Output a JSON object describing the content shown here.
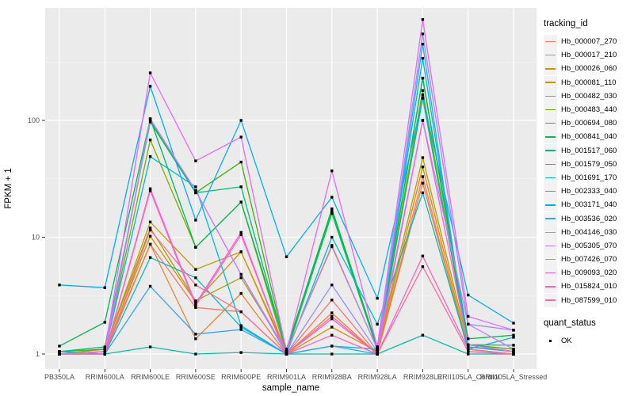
{
  "figure": {
    "background": "#FFFFFF",
    "panel_background": "#EBEBEB",
    "grid_major_color": "#FFFFFF",
    "grid_minor_color": "#F7F7F7",
    "tick_color": "#333333",
    "tick_label_color": "#4D4D4D",
    "axis_title_color": "#000000",
    "marker_color": "#000000",
    "legend_key_background": "#F2F2F2"
  },
  "chart_data": {
    "type": "line",
    "title": "",
    "xlabel": "sample_name",
    "ylabel": "FPKM + 1",
    "y_scale": "log10",
    "ylim": [
      0.74,
      920
    ],
    "grid": true,
    "legend_position": "right",
    "marker": "square",
    "yticks": [
      {
        "value": 1,
        "label": "1"
      },
      {
        "value": 10,
        "label": "10"
      },
      {
        "value": 100,
        "label": "100"
      }
    ],
    "minor_yticks": [
      3.162,
      31.62,
      316.2
    ],
    "categories": [
      "PB350LA",
      "RRIM600LA",
      "RRIM600LE",
      "RRIM600SE",
      "RRIM600PE",
      "RRIM901LA",
      "RRIM928BA",
      "RRIM928LA",
      "RRIM928LE",
      "RRII105LA_Control",
      "RRII105LA_Stressed"
    ],
    "series_legend_title": "tracking_id",
    "status_legend_title": "quant_status",
    "status_items": [
      {
        "label": "OK",
        "marker": "square",
        "color": "#000000"
      }
    ],
    "series": [
      {
        "name": "Hb_000007_270",
        "color": "#F8766D",
        "values": [
          1.0,
          1.0,
          8.7,
          2.5,
          2.3,
          1.0,
          2.9,
          1.0,
          33,
          1.05,
          1.0
        ]
      },
      {
        "name": "Hb_000017_210",
        "color": "#EA8331",
        "values": [
          1.0,
          1.05,
          8.7,
          1.35,
          3.3,
          1.0,
          2.25,
          1.0,
          29,
          1.1,
          1.0
        ]
      },
      {
        "name": "Hb_000026_060",
        "color": "#D89000",
        "values": [
          1.0,
          1.05,
          10.2,
          2.8,
          7.5,
          1.0,
          1.7,
          1.05,
          40,
          1.1,
          1.0
        ]
      },
      {
        "name": "Hb_000081_110",
        "color": "#C09B00",
        "values": [
          1.0,
          1.1,
          13.5,
          5.3,
          7.5,
          1.05,
          8.3,
          1.1,
          48,
          1.2,
          1.05
        ]
      },
      {
        "name": "Hb_000482_030",
        "color": "#A3A500",
        "values": [
          1.0,
          1.1,
          12.0,
          2.85,
          4.5,
          1.05,
          16,
          1.1,
          165,
          1.2,
          1.05
        ]
      },
      {
        "name": "Hb_000483_440",
        "color": "#7CAE00",
        "values": [
          1.0,
          1.05,
          68,
          8.2,
          20,
          1.0,
          16.5,
          1.1,
          180,
          1.15,
          1.05
        ]
      },
      {
        "name": "Hb_000694_080",
        "color": "#39B600",
        "values": [
          1.05,
          1.1,
          100,
          24,
          44,
          1.05,
          17,
          1.15,
          230,
          1.2,
          1.1
        ]
      },
      {
        "name": "Hb_000841_040",
        "color": "#00BB4E",
        "values": [
          1.17,
          1.87,
          103,
          8.2,
          20,
          1.1,
          17.5,
          1.15,
          230,
          1.35,
          1.45
        ]
      },
      {
        "name": "Hb_001517_060",
        "color": "#00BF7D",
        "values": [
          1.05,
          1.15,
          97,
          24,
          27,
          1.05,
          16,
          1.1,
          155,
          1.2,
          1.19
        ]
      },
      {
        "name": "Hb_001579_050",
        "color": "#00C1A3",
        "values": [
          1.05,
          1.0,
          1.15,
          1.0,
          1.03,
          1.0,
          1.0,
          1.0,
          1.45,
          1.0,
          1.0
        ]
      },
      {
        "name": "Hb_001691_170",
        "color": "#00BFC4",
        "values": [
          1.05,
          1.0,
          6.7,
          4.5,
          1.7,
          1.0,
          10,
          1.8,
          24,
          1.1,
          1.39
        ]
      },
      {
        "name": "Hb_002333_040",
        "color": "#00BAE0",
        "values": [
          1.0,
          1.05,
          49,
          27,
          1.75,
          1.0,
          1.17,
          1.1,
          340,
          1.15,
          1.05
        ]
      },
      {
        "name": "Hb_003171_040",
        "color": "#00B0F6",
        "values": [
          3.9,
          3.7,
          196,
          14,
          100,
          6.8,
          22,
          3.0,
          155,
          3.2,
          1.84
        ]
      },
      {
        "name": "Hb_003536_020",
        "color": "#35A2FF",
        "values": [
          1.0,
          1.0,
          3.8,
          1.48,
          1.62,
          1.0,
          1.17,
          1.0,
          450,
          1.05,
          1.0
        ]
      },
      {
        "name": "Hb_004146_030",
        "color": "#9590FF",
        "values": [
          1.0,
          1.05,
          103,
          25,
          4.8,
          1.0,
          3.9,
          1.05,
          550,
          1.8,
          1.6
        ]
      },
      {
        "name": "Hb_005305_070",
        "color": "#C77CFF",
        "values": [
          1.0,
          1.0,
          103,
          25,
          4.8,
          1.05,
          8.5,
          1.1,
          100,
          1.8,
          1.1
        ]
      },
      {
        "name": "Hb_007426_070",
        "color": "#E76BF3",
        "values": [
          1.0,
          1.05,
          255,
          45,
          72,
          1.05,
          37,
          1.15,
          730,
          2.1,
          1.6
        ]
      },
      {
        "name": "Hb_009093_020",
        "color": "#FA62DB",
        "values": [
          1.0,
          1.0,
          26,
          2.7,
          11,
          1.0,
          2.0,
          1.0,
          100,
          1.2,
          1.05
        ]
      },
      {
        "name": "Hb_015824_010",
        "color": "#FF62BC",
        "values": [
          1.0,
          1.0,
          25,
          2.6,
          10.5,
          1.0,
          1.45,
          1.0,
          6.9,
          1.1,
          1.0
        ]
      },
      {
        "name": "Hb_087599_010",
        "color": "#FF6A98",
        "values": [
          1.0,
          1.0,
          11.5,
          3.9,
          2.3,
          1.0,
          2.1,
          1.0,
          5.6,
          1.05,
          1.0
        ]
      }
    ]
  }
}
